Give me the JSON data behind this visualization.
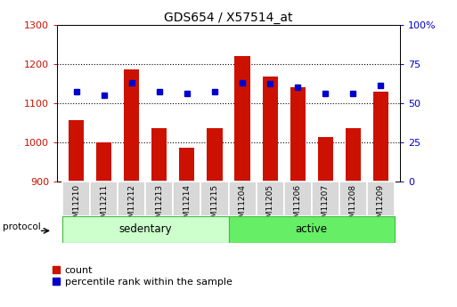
{
  "title": "GDS654 / X57514_at",
  "samples": [
    "GSM11210",
    "GSM11211",
    "GSM11212",
    "GSM11213",
    "GSM11214",
    "GSM11215",
    "GSM11204",
    "GSM11205",
    "GSM11206",
    "GSM11207",
    "GSM11208",
    "GSM11209"
  ],
  "counts": [
    1055,
    998,
    1185,
    1035,
    985,
    1035,
    1220,
    1168,
    1140,
    1013,
    1035,
    1128
  ],
  "percentile_ranks": [
    57,
    55,
    63,
    57,
    56,
    57,
    63,
    62,
    60,
    56,
    56,
    61
  ],
  "groups": [
    "sedentary",
    "sedentary",
    "sedentary",
    "sedentary",
    "sedentary",
    "sedentary",
    "active",
    "active",
    "active",
    "active",
    "active",
    "active"
  ],
  "group_labels": [
    "sedentary",
    "active"
  ],
  "group_colors_light": [
    "#ccffcc",
    "#66ee66"
  ],
  "sed_count": 6,
  "act_count": 6,
  "bar_color": "#cc1100",
  "dot_color": "#0000cc",
  "ylim_left": [
    900,
    1300
  ],
  "ylim_right": [
    0,
    100
  ],
  "yticks_left": [
    900,
    1000,
    1100,
    1200,
    1300
  ],
  "yticks_right": [
    0,
    25,
    50,
    75,
    100
  ],
  "ytick_labels_right": [
    "0",
    "25",
    "50",
    "75",
    "100%"
  ],
  "background_color": "#ffffff",
  "legend_count_label": "count",
  "legend_pct_label": "percentile rank within the sample",
  "protocol_label": "protocol",
  "bar_width": 0.55,
  "label_box_color": "#d8d8d8",
  "label_box_edge": "#ffffff",
  "grid_yticks": [
    1000,
    1100,
    1200
  ]
}
